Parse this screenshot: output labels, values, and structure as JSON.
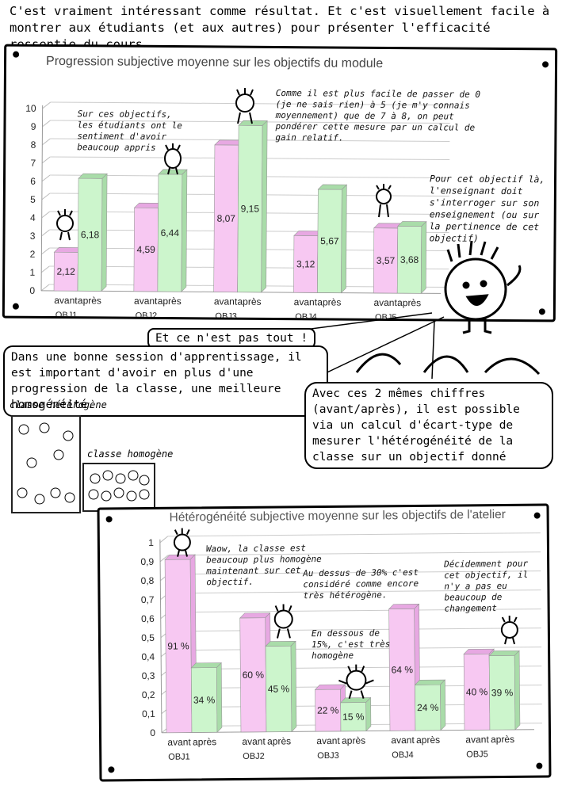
{
  "intro_text": "C'est vraiment intéressant comme résultat. Et c'est visuellement facile à montrer aux étudiants (et aux autres) pour présenter l'efficacité ressentie du cours.",
  "chart1_notes": {
    "learned": "Sur ces objectifs, les étudiants ont le sentiment d'avoir beaucoup appris",
    "relative_gain": "Comme il est plus facile de passer de 0 (je ne sais rien) à 5 (je m'y connais moyennement) que de 7 à 8, on peut pondérer cette mesure par un calcul de gain relatif.",
    "question_teaching": "Pour cet objectif là, l'enseignant doit s'interroger sur son enseignement (ou sur la pertinence de cet objectif)"
  },
  "bubbles": {
    "not_all": "Et ce n'est pas tout !",
    "good_session": "Dans une bonne session d'apprentissage, il est important d'avoir en plus d'une progression de la classe, une meilleure homogénéité.",
    "std_dev": "Avec ces 2 mêmes chiffres (avant/après), il est possible via un calcul d'écart-type de mesurer l'hétérogénéité de la classe sur un objectif donné"
  },
  "class_labels": {
    "heterogeneous": "classe hétérogène",
    "homogeneous": "classe homogène"
  },
  "chart2_notes": {
    "waow": "Waow, la classe est beaucoup plus homogène maintenant sur cet objectif.",
    "above30": "Au dessus de 30% c'est considéré comme encore très hétérogène.",
    "below15": "En dessous de 15%, c'est très homogène",
    "no_change": "Décidemment pour cet objectif, il n'y a pas eu beaucoup de changement"
  },
  "colors": {
    "avant": "#f7c8f2",
    "apres": "#ccf5cc",
    "avant_top": "#e7a8e2",
    "apres_top": "#a9dca9"
  },
  "chart_data": [
    {
      "type": "bar",
      "title": "Progression subjective moyenne sur les objectifs du module",
      "categories": [
        "OBJ1",
        "OBJ2",
        "OBJ3",
        "OBJ4",
        "OBJ5"
      ],
      "sub_labels": [
        "avant",
        "après"
      ],
      "series": [
        {
          "name": "avant",
          "values": [
            2.12,
            4.59,
            8.07,
            3.12,
            3.57
          ],
          "labels": [
            "2,12",
            "4,59",
            "8,07",
            "3,12",
            "3,57"
          ]
        },
        {
          "name": "après",
          "values": [
            6.18,
            6.44,
            9.15,
            5.67,
            3.68
          ],
          "labels": [
            "6,18",
            "6,44",
            "9,15",
            "5,67",
            "3,68"
          ]
        }
      ],
      "ylim": [
        0,
        10
      ],
      "yticks": [
        "0",
        "1",
        "2",
        "3",
        "4",
        "5",
        "6",
        "7",
        "8",
        "9",
        "10"
      ],
      "grid": true
    },
    {
      "type": "bar",
      "title": "Hétérogénéité subjective moyenne sur les objectifs de l'atelier",
      "categories": [
        "OBJ1",
        "OBJ2",
        "OBJ3",
        "OBJ4",
        "OBJ5"
      ],
      "sub_labels": [
        "avant",
        "après"
      ],
      "series": [
        {
          "name": "avant",
          "values": [
            0.91,
            0.6,
            0.22,
            0.64,
            0.4
          ],
          "labels": [
            "91 %",
            "60 %",
            "22 %",
            "64 %",
            "40 %"
          ]
        },
        {
          "name": "après",
          "values": [
            0.34,
            0.45,
            0.15,
            0.24,
            0.39
          ],
          "labels": [
            "34 %",
            "45 %",
            "15 %",
            "24 %",
            "39 %"
          ]
        }
      ],
      "ylim": [
        0,
        1
      ],
      "yticks": [
        "0",
        "0,1",
        "0,2",
        "0,3",
        "0,4",
        "0,5",
        "0,6",
        "0,7",
        "0,8",
        "0,9",
        "1"
      ],
      "grid": true
    }
  ]
}
